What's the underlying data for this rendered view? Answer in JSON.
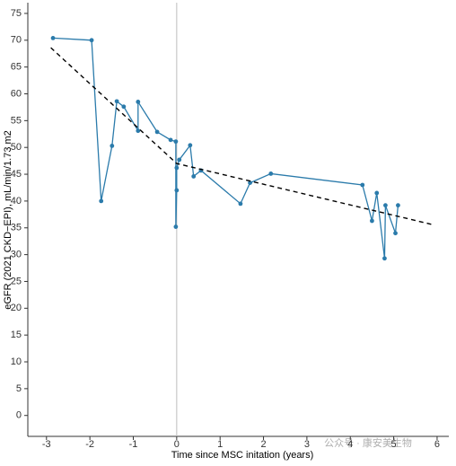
{
  "chart_data": {
    "type": "line",
    "xlabel": "Time since MSC initation (years)",
    "ylabel": "eGFR (2021 CKD−EPI), mL/min/1.73 m2",
    "xlim": [
      -3.43,
      6.27
    ],
    "ylim": [
      -3.9,
      77
    ],
    "xticks": [
      -3,
      -2,
      -1,
      0,
      1,
      2,
      3,
      4,
      5,
      6
    ],
    "yticks": [
      0,
      5,
      10,
      15,
      20,
      25,
      30,
      35,
      40,
      45,
      50,
      55,
      60,
      65,
      70,
      75
    ],
    "vline": 0,
    "vline_color": "#bdbdbd",
    "series": [
      {
        "color": "#2b7bab",
        "markers": true,
        "dashed": false,
        "x": [
          -2.85,
          -1.96,
          -1.74,
          -1.49,
          -1.38,
          -1.22,
          -0.89,
          -0.89,
          -0.45,
          -0.14,
          -0.02,
          -0.02,
          0.0,
          0.0,
          0.06,
          0.31,
          0.39,
          0.56,
          1.47,
          1.69,
          2.17,
          4.28,
          4.5,
          4.61,
          4.79,
          4.81,
          5.04,
          5.1
        ],
        "values": [
          70.4,
          70.0,
          40.0,
          50.3,
          58.6,
          57.6,
          53.1,
          58.5,
          52.9,
          51.4,
          51.1,
          35.2,
          42.0,
          46.2,
          47.7,
          50.4,
          44.6,
          45.7,
          39.5,
          43.4,
          45.1,
          43.0,
          36.3,
          41.5,
          29.3,
          39.2,
          34.0,
          39.2
        ]
      },
      {
        "color": "#000000",
        "markers": false,
        "dashed": true,
        "x": [
          -2.9,
          0,
          5.9
        ],
        "values": [
          68.6,
          47.0,
          35.6
        ]
      }
    ],
    "watermark": "公众号 · 康安美生物"
  }
}
